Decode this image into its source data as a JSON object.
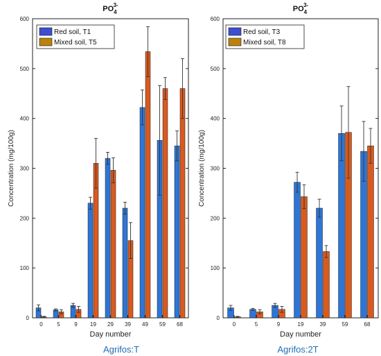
{
  "colors": {
    "blue": "#2e75d6",
    "orange": "#d85a1f",
    "legend_blue": "#3d4fd1",
    "legend_orange": "#b9820e",
    "caption": "#1e6db5",
    "errorbar": "#333333"
  },
  "chart_data": [
    {
      "type": "bar",
      "title": "PO",
      "title_sub": "4",
      "title_sup": "3-",
      "ylabel": "Concentration (mg/100g)",
      "xlabel": "Day number",
      "caption": "Agrifos:T",
      "ylim": [
        0,
        600
      ],
      "yticks": [
        "0",
        "100",
        "200",
        "300",
        "400",
        "500",
        "600"
      ],
      "legend_position": "top-left",
      "categories": [
        "0",
        "5",
        "9",
        "19",
        "29",
        "39",
        "49",
        "59",
        "68"
      ],
      "series": [
        {
          "name": "Red soil, T1",
          "values": [
            20,
            16,
            25,
            230,
            320,
            220,
            422,
            356,
            345
          ],
          "errors": [
            6,
            2,
            4,
            12,
            12,
            12,
            35,
            110,
            30
          ]
        },
        {
          "name": "Mixed soil, T5",
          "values": [
            2,
            12,
            17,
            310,
            296,
            155,
            534,
            460,
            460
          ],
          "errors": [
            1,
            4,
            6,
            50,
            25,
            36,
            50,
            22,
            60
          ]
        }
      ]
    },
    {
      "type": "bar",
      "title": "PO",
      "title_sub": "4",
      "title_sup": "3-",
      "ylabel": "Concentration (mg/100g)",
      "xlabel": "Day number",
      "caption": "Agrifos:2T",
      "ylim": [
        0,
        600
      ],
      "yticks": [
        "0",
        "100",
        "200",
        "300",
        "400",
        "500",
        "600"
      ],
      "legend_position": "top-left",
      "categories": [
        "0",
        "5",
        "9",
        "19",
        "39",
        "59",
        "68"
      ],
      "series": [
        {
          "name": "Red soil, T3",
          "values": [
            20,
            17,
            25,
            272,
            220,
            370,
            334
          ],
          "errors": [
            5,
            2,
            4,
            20,
            18,
            55,
            60
          ]
        },
        {
          "name": "Mixed soil, T8",
          "values": [
            2,
            12,
            17,
            243,
            133,
            372,
            345
          ],
          "errors": [
            1,
            4,
            6,
            24,
            12,
            92,
            35
          ]
        }
      ]
    }
  ]
}
